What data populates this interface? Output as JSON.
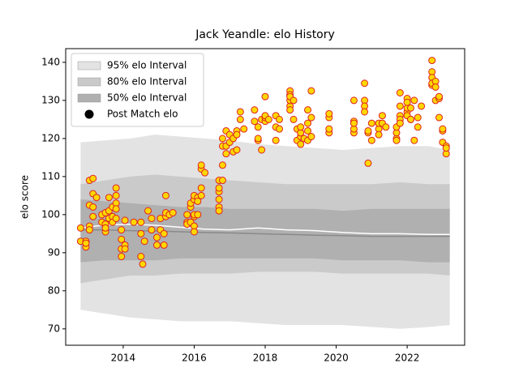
{
  "chart_data": {
    "type": "scatter",
    "title": "Jack Yeandle: elo History",
    "y_label": "elo score",
    "xlim": [
      2012.38,
      2023.62
    ],
    "xticks": [
      2014,
      2016,
      2018,
      2020,
      2022
    ],
    "ylim": [
      65.7,
      143.6
    ],
    "yticks": [
      70,
      80,
      90,
      100,
      110,
      120,
      130,
      140
    ],
    "legend": "upper left",
    "legend_marker_color": "#000000",
    "x": [
      2012.8,
      2013.5,
      2014.2,
      2014.9,
      2015.6,
      2016.3,
      2017.0,
      2017.8,
      2018.6,
      2019.4,
      2020.2,
      2021.0,
      2021.8,
      2022.6,
      2023.2
    ],
    "bands": [
      {
        "name": "95% elo Interval",
        "color": "#e3e3e3",
        "upper": [
          119,
          119.5,
          120,
          121,
          120.5,
          120,
          119.5,
          118.5,
          118,
          117.5,
          117,
          117.5,
          118,
          118,
          117
        ],
        "lower": [
          75,
          74,
          73,
          72.5,
          72,
          72,
          72,
          71.5,
          71,
          71,
          71,
          70.5,
          70,
          70.5,
          71
        ]
      },
      {
        "name": "80% elo Interval",
        "color": "#cacaca",
        "upper": [
          108,
          109,
          110,
          110.5,
          110,
          109.5,
          109,
          108.5,
          108,
          108,
          108,
          108,
          108.5,
          108,
          108
        ],
        "lower": [
          82,
          83,
          84,
          84,
          84.5,
          84.5,
          84.5,
          85,
          85,
          85,
          84.5,
          84.5,
          84.5,
          84.5,
          84
        ]
      },
      {
        "name": "50% elo Interval",
        "color": "#b0b0b0",
        "upper": [
          104,
          103.5,
          103,
          102.5,
          102,
          102,
          101.5,
          101.5,
          101.5,
          101.5,
          101,
          101.5,
          101.5,
          101.5,
          101.5
        ],
        "lower": [
          87.5,
          88,
          88,
          88,
          88.5,
          88.5,
          88.5,
          88.5,
          88.5,
          88.5,
          88,
          88,
          88,
          87.5,
          87.5
        ]
      }
    ],
    "lines": [
      {
        "color": "#8a8a8a",
        "values": [
          96,
          96,
          95.8,
          95.7,
          95.5,
          95.3,
          95.2,
          95,
          94.8,
          94.6,
          94.5,
          94.3,
          94.3,
          94.3,
          94.3
        ]
      },
      {
        "color": "#ffffff",
        "values": [
          96.5,
          97.3,
          97.5,
          97.2,
          96.7,
          96.2,
          96,
          96.5,
          96,
          95.8,
          95.3,
          95,
          95,
          94.8,
          94.8
        ]
      }
    ],
    "series": [
      {
        "name": "Post Match elo",
        "color": "#ffd700",
        "edge_color": "#dd2222",
        "x": [
          2012.8,
          2012.8,
          2012.95,
          2012.95,
          2012.95,
          2013.05,
          2013.05,
          2013.05,
          2013.05,
          2013.15,
          2013.15,
          2013.15,
          2013.15,
          2013.25,
          2013.4,
          2013.4,
          2013.5,
          2013.5,
          2013.5,
          2013.5,
          2013.6,
          2013.6,
          2013.6,
          2013.7,
          2013.7,
          2013.7,
          2013.8,
          2013.8,
          2013.8,
          2013.8,
          2013.8,
          2013.95,
          2013.95,
          2013.95,
          2013.95,
          2014.05,
          2014.05,
          2014.05,
          2014.3,
          2014.5,
          2014.5,
          2014.5,
          2014.55,
          2014.6,
          2014.7,
          2014.8,
          2014.8,
          2014.95,
          2014.95,
          2015.05,
          2015.05,
          2015.15,
          2015.15,
          2015.2,
          2015.2,
          2015.2,
          2015.3,
          2015.4,
          2015.8,
          2015.8,
          2015.8,
          2015.9,
          2015.9,
          2015.9,
          2016.0,
          2016.0,
          2016.0,
          2016.0,
          2016.0,
          2016.0,
          2016.1,
          2016.1,
          2016.1,
          2016.2,
          2016.2,
          2016.2,
          2016.2,
          2016.3,
          2016.7,
          2016.7,
          2016.7,
          2016.7,
          2016.7,
          2016.7,
          2016.8,
          2016.8,
          2016.8,
          2016.8,
          2016.9,
          2016.9,
          2016.9,
          2017.0,
          2017.0,
          2017.1,
          2017.1,
          2017.2,
          2017.2,
          2017.2,
          2017.3,
          2017.3,
          2017.4,
          2017.7,
          2017.7,
          2017.8,
          2017.8,
          2017.8,
          2017.9,
          2017.9,
          2018.0,
          2018.0,
          2018.0,
          2018.0,
          2018.1,
          2018.3,
          2018.3,
          2018.3,
          2018.4,
          2018.4,
          2018.7,
          2018.7,
          2018.7,
          2018.7,
          2018.7,
          2018.7,
          2018.8,
          2018.8,
          2018.9,
          2018.9,
          2019.0,
          2019.0,
          2019.0,
          2019.0,
          2019.1,
          2019.2,
          2019.2,
          2019.2,
          2019.2,
          2019.3,
          2019.3,
          2019.3,
          2019.8,
          2019.8,
          2019.8,
          2019.8,
          2020.5,
          2020.5,
          2020.5,
          2020.5,
          2020.5,
          2020.8,
          2020.8,
          2020.8,
          2020.8,
          2020.9,
          2020.9,
          2020.9,
          2021.0,
          2021.0,
          2021.2,
          2021.2,
          2021.2,
          2021.3,
          2021.3,
          2021.4,
          2021.7,
          2021.7,
          2021.7,
          2021.7,
          2021.8,
          2021.8,
          2021.8,
          2021.8,
          2021.8,
          2022.0,
          2022.0,
          2022.0,
          2022.0,
          2022.0,
          2022.1,
          2022.1,
          2022.1,
          2022.2,
          2022.2,
          2022.3,
          2022.3,
          2022.4,
          2022.7,
          2022.7,
          2022.7,
          2022.7,
          2022.7,
          2022.8,
          2022.8,
          2022.8,
          2022.9,
          2022.9,
          2022.9,
          2023.0,
          2023.0,
          2023.0,
          2023.1,
          2023.1,
          2023.1
        ],
        "y": [
          96.5,
          93,
          93,
          91.5,
          92.5,
          97,
          96,
          102.5,
          109,
          102,
          99.5,
          105.5,
          109.5,
          104.5,
          98,
          100,
          97.5,
          95.5,
          100.5,
          96.5,
          101,
          99,
          104.5,
          102,
          99.5,
          98,
          103,
          105,
          107,
          101.5,
          99,
          91,
          93.5,
          96,
          89,
          92,
          91,
          98.5,
          98,
          95,
          89,
          98,
          87,
          93,
          101,
          96,
          99,
          94,
          92,
          96,
          99,
          95,
          92,
          99.5,
          105,
          100.5,
          100,
          100.5,
          98,
          97.5,
          100,
          102,
          103,
          98,
          104,
          99.5,
          97,
          95.5,
          100,
          105,
          104.5,
          103.5,
          100,
          107,
          112,
          113,
          105,
          111,
          102,
          101,
          104,
          106,
          109,
          107,
          109,
          113,
          118,
          120,
          122,
          118,
          116,
          121,
          119,
          116.5,
          120,
          117,
          122,
          121,
          125,
          127,
          122.5,
          127.5,
          124.5,
          119.5,
          120,
          123,
          117,
          125,
          124.5,
          125.5,
          126,
          131,
          125,
          119.5,
          123,
          126,
          122.5,
          125,
          128.5,
          130,
          132.5,
          131.5,
          131,
          127.5,
          125,
          130,
          122.5,
          119.5,
          120.5,
          118.5,
          121.5,
          123,
          120,
          124,
          127.5,
          119.5,
          122,
          125.5,
          132.5,
          120.5,
          121.5,
          122.5,
          125.5,
          126.5,
          130,
          124.5,
          121.5,
          122.5,
          124,
          134.5,
          130,
          128.5,
          127,
          121.5,
          122,
          113.5,
          119.5,
          124,
          122.5,
          124,
          121,
          126,
          124,
          123,
          120,
          119.5,
          121.5,
          123,
          126,
          128.5,
          132,
          125,
          124,
          127,
          126,
          128,
          130.5,
          129.5,
          125,
          128,
          125,
          119.5,
          130,
          125.5,
          123,
          128.5,
          134,
          137.5,
          140.5,
          136,
          134.5,
          135,
          130,
          133.5,
          125.5,
          130.5,
          131,
          122,
          119,
          122.5,
          118,
          116,
          117.5
        ]
      }
    ]
  }
}
